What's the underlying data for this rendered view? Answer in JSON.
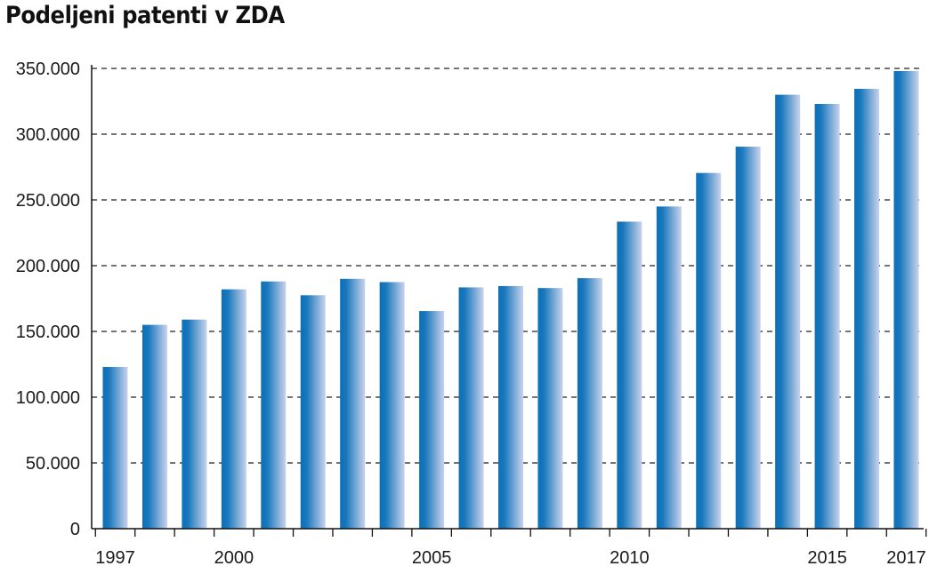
{
  "chart_data": {
    "type": "bar",
    "title": "Podeljeni patenti v ZDA",
    "xlabel": "",
    "ylabel": "",
    "categories": [
      "1997",
      "1998",
      "1999",
      "2000",
      "2001",
      "2002",
      "2003",
      "2004",
      "2005",
      "2006",
      "2007",
      "2008",
      "2009",
      "2010",
      "2011",
      "2012",
      "2013",
      "2014",
      "2015",
      "2016",
      "2017"
    ],
    "values": [
      123000,
      155000,
      159000,
      182000,
      188000,
      177500,
      190000,
      187500,
      165500,
      183500,
      184500,
      183000,
      190500,
      233500,
      245000,
      270500,
      290500,
      330000,
      323000,
      334500,
      348000
    ],
    "x_tick_labels": [
      "1997",
      "2000",
      "2005",
      "2010",
      "2015",
      "2017"
    ],
    "y_tick_labels": [
      "0",
      "50.000",
      "100.000",
      "150.000",
      "200.000",
      "250.000",
      "300.000",
      "350.000"
    ],
    "y_ticks": [
      0,
      50000,
      100000,
      150000,
      200000,
      250000,
      300000,
      350000
    ],
    "ylim": [
      0,
      350000
    ],
    "grid": true,
    "legend": "none",
    "bar_colors": [
      "#0a6fb8",
      "#c9d3ec"
    ]
  }
}
